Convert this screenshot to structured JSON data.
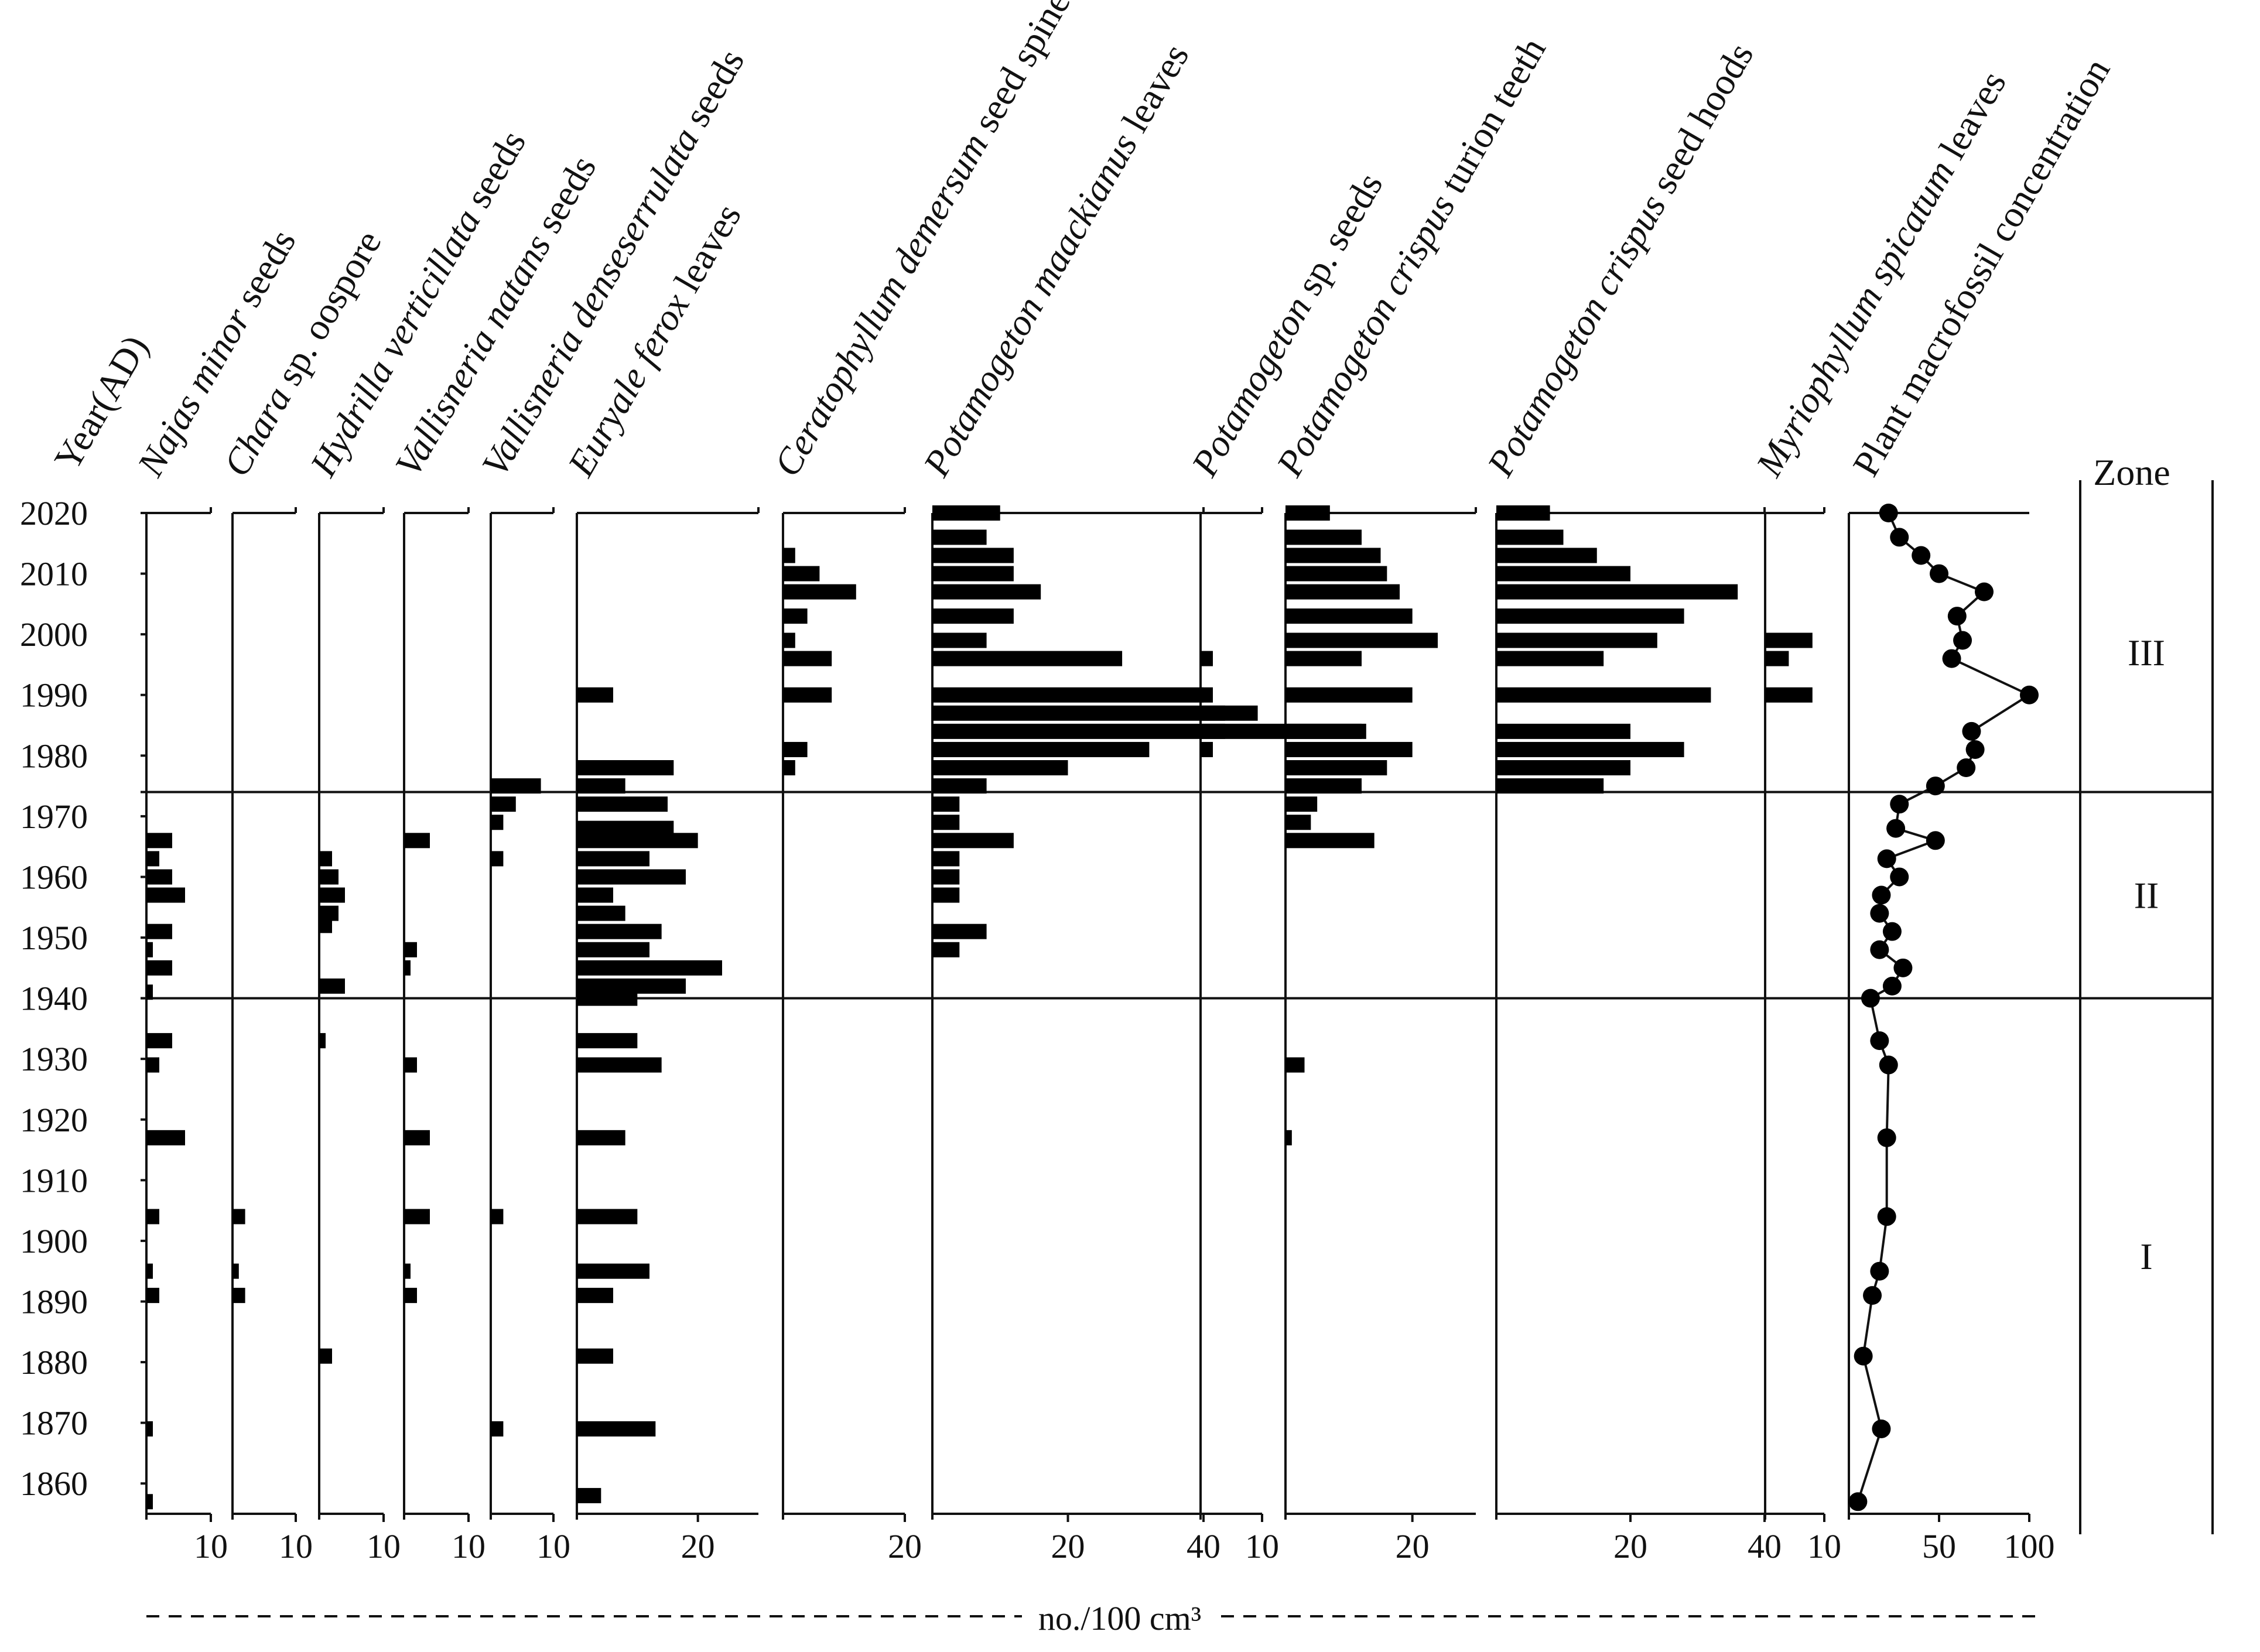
{
  "chart_data": {
    "type": "bar",
    "title": "",
    "ylabel": "Year(AD)",
    "xlabel": "no./100 cm³",
    "ylim": [
      1855,
      2020
    ],
    "yticks": [
      2020,
      2010,
      2000,
      1990,
      1980,
      1970,
      1960,
      1950,
      1940,
      1930,
      1920,
      1910,
      1900,
      1890,
      1880,
      1870,
      1860
    ],
    "zone_header": "Zone",
    "zones": [
      {
        "name": "I",
        "from": 1855,
        "to": 1940
      },
      {
        "name": "II",
        "from": 1940,
        "to": 1974
      },
      {
        "name": "III",
        "from": 1974,
        "to": 2020
      }
    ],
    "zone_boundaries": [
      1940,
      1974
    ],
    "series": [
      {
        "name": "Najas minor seeds",
        "italic": "Najas minor",
        "rest": " seeds",
        "max": 10,
        "ticks": [
          10
        ],
        "points": [
          [
            1857,
            1
          ],
          [
            1869,
            1
          ],
          [
            1891,
            2
          ],
          [
            1895,
            1
          ],
          [
            1904,
            2
          ],
          [
            1917,
            6
          ],
          [
            1929,
            2
          ],
          [
            1933,
            4
          ],
          [
            1941,
            1
          ],
          [
            1945,
            4
          ],
          [
            1948,
            1
          ],
          [
            1951,
            4
          ],
          [
            1957,
            6
          ],
          [
            1960,
            4
          ],
          [
            1963,
            2
          ],
          [
            1966,
            4
          ]
        ]
      },
      {
        "name": "Chara sp. oospore",
        "italic": "Chara",
        "rest": " sp. oospore",
        "max": 10,
        "ticks": [
          10
        ],
        "points": [
          [
            1891,
            2
          ],
          [
            1895,
            1
          ],
          [
            1904,
            2
          ]
        ]
      },
      {
        "name": "Hydrilla verticillata seeds",
        "italic": "Hydrilla verticillata",
        "rest": " seeds",
        "max": 10,
        "ticks": [
          10
        ],
        "points": [
          [
            1881,
            2
          ],
          [
            1933,
            1
          ],
          [
            1942,
            4
          ],
          [
            1952,
            2
          ],
          [
            1954,
            3
          ],
          [
            1957,
            4
          ],
          [
            1960,
            3
          ],
          [
            1963,
            2
          ]
        ]
      },
      {
        "name": "Vallisneria natans seeds",
        "italic": "Vallisneria natans",
        "rest": " seeds",
        "max": 10,
        "ticks": [
          10
        ],
        "points": [
          [
            1891,
            2
          ],
          [
            1895,
            1
          ],
          [
            1904,
            4
          ],
          [
            1917,
            4
          ],
          [
            1929,
            2
          ],
          [
            1945,
            1
          ],
          [
            1948,
            2
          ],
          [
            1966,
            4
          ]
        ]
      },
      {
        "name": "Vallisneria denseserrulata seeds",
        "italic": "Vallisneria denseserrulata",
        "rest": " seeds",
        "max": 10,
        "ticks": [
          10
        ],
        "points": [
          [
            1869,
            2
          ],
          [
            1904,
            2
          ],
          [
            1963,
            2
          ],
          [
            1969,
            2
          ],
          [
            1972,
            4
          ],
          [
            1975,
            8
          ]
        ]
      },
      {
        "name": "Euryale ferox leaves",
        "italic": "Euryale ferox",
        "rest": " leaves",
        "max": 30,
        "ticks": [
          20
        ],
        "points": [
          [
            1858,
            4
          ],
          [
            1869,
            13
          ],
          [
            1881,
            6
          ],
          [
            1891,
            6
          ],
          [
            1895,
            12
          ],
          [
            1904,
            10
          ],
          [
            1917,
            8
          ],
          [
            1929,
            14
          ],
          [
            1933,
            10
          ],
          [
            1940,
            10
          ],
          [
            1942,
            18
          ],
          [
            1945,
            24
          ],
          [
            1948,
            12
          ],
          [
            1951,
            14
          ],
          [
            1954,
            8
          ],
          [
            1957,
            6
          ],
          [
            1960,
            18
          ],
          [
            1963,
            12
          ],
          [
            1966,
            20
          ],
          [
            1968,
            16
          ],
          [
            1972,
            15
          ],
          [
            1975,
            8
          ],
          [
            1978,
            16
          ],
          [
            1990,
            6
          ]
        ]
      },
      {
        "name": "Ceratophyllum demersum seed spines",
        "italic": "Ceratophyllum demersum",
        "rest": " seed spines",
        "max": 20,
        "ticks": [
          20
        ],
        "points": [
          [
            1978,
            2
          ],
          [
            1981,
            4
          ],
          [
            1990,
            8
          ],
          [
            1996,
            8
          ],
          [
            1999,
            2
          ],
          [
            2003,
            4
          ],
          [
            2007,
            12
          ],
          [
            2010,
            6
          ],
          [
            2013,
            2
          ]
        ]
      },
      {
        "name": "Potamogeton maackianus leaves",
        "italic": "Potamogeton maackianus",
        "rest": " leaves",
        "max": 40,
        "ticks": [
          20,
          40
        ],
        "points": [
          [
            1948,
            4
          ],
          [
            1951,
            8
          ],
          [
            1957,
            4
          ],
          [
            1960,
            4
          ],
          [
            1963,
            4
          ],
          [
            1966,
            12
          ],
          [
            1969,
            4
          ],
          [
            1972,
            4
          ],
          [
            1975,
            8
          ],
          [
            1978,
            20
          ],
          [
            1981,
            32
          ],
          [
            1984,
            64
          ],
          [
            1987,
            48
          ],
          [
            1990,
            40
          ],
          [
            1996,
            28
          ],
          [
            1999,
            8
          ],
          [
            2003,
            12
          ],
          [
            2007,
            16
          ],
          [
            2010,
            12
          ],
          [
            2013,
            12
          ],
          [
            2016,
            8
          ],
          [
            2020,
            10
          ]
        ]
      },
      {
        "name": "Potamogeton sp. seeds",
        "italic": "Potamogeton",
        "rest": " sp. seeds",
        "max": 10,
        "ticks": [
          10
        ],
        "points": [
          [
            1981,
            2
          ],
          [
            1984,
            4
          ],
          [
            1987,
            4
          ],
          [
            1990,
            2
          ],
          [
            1996,
            2
          ]
        ]
      },
      {
        "name": "Potamogeton crispus turion teeth",
        "italic": "Potamogeton crispus",
        "rest": " turion teeth",
        "max": 30,
        "ticks": [
          20
        ],
        "points": [
          [
            1917,
            1
          ],
          [
            1929,
            3
          ],
          [
            1966,
            14
          ],
          [
            1969,
            4
          ],
          [
            1972,
            5
          ],
          [
            1975,
            12
          ],
          [
            1978,
            16
          ],
          [
            1981,
            20
          ],
          [
            1984,
            12
          ],
          [
            1990,
            20
          ],
          [
            1996,
            12
          ],
          [
            1999,
            24
          ],
          [
            2003,
            20
          ],
          [
            2007,
            18
          ],
          [
            2010,
            16
          ],
          [
            2013,
            15
          ],
          [
            2016,
            12
          ],
          [
            2020,
            7
          ]
        ]
      },
      {
        "name": "Potamogeton crispus seed hoods",
        "italic": "Potamogeton crispus",
        "rest": " seed hoods",
        "max": 40,
        "ticks": [
          20,
          40
        ],
        "points": [
          [
            1975,
            16
          ],
          [
            1978,
            20
          ],
          [
            1981,
            28
          ],
          [
            1984,
            20
          ],
          [
            1990,
            32
          ],
          [
            1996,
            16
          ],
          [
            1999,
            24
          ],
          [
            2003,
            28
          ],
          [
            2007,
            36
          ],
          [
            2010,
            20
          ],
          [
            2013,
            15
          ],
          [
            2016,
            10
          ],
          [
            2020,
            8
          ]
        ]
      },
      {
        "name": "Myriophyllum spicatum leaves",
        "italic": "Myriophyllum spicatum",
        "rest": " leaves",
        "max": 10,
        "ticks": [
          10
        ],
        "points": [
          [
            1990,
            8
          ],
          [
            1996,
            4
          ],
          [
            1999,
            8
          ]
        ]
      }
    ],
    "concentration": {
      "name": "Plant macrofossil concentration",
      "max": 100,
      "ticks": [
        50,
        100
      ],
      "points": [
        [
          1857,
          5
        ],
        [
          1869,
          18
        ],
        [
          1881,
          8
        ],
        [
          1891,
          13
        ],
        [
          1895,
          17
        ],
        [
          1904,
          21
        ],
        [
          1917,
          21
        ],
        [
          1929,
          22
        ],
        [
          1933,
          17
        ],
        [
          1940,
          12
        ],
        [
          1942,
          24
        ],
        [
          1945,
          30
        ],
        [
          1948,
          17
        ],
        [
          1951,
          24
        ],
        [
          1954,
          17
        ],
        [
          1957,
          18
        ],
        [
          1960,
          28
        ],
        [
          1963,
          21
        ],
        [
          1966,
          48
        ],
        [
          1968,
          26
        ],
        [
          1972,
          28
        ],
        [
          1975,
          48
        ],
        [
          1978,
          65
        ],
        [
          1981,
          70
        ],
        [
          1984,
          68
        ],
        [
          1990,
          100
        ],
        [
          1996,
          57
        ],
        [
          1999,
          63
        ],
        [
          2003,
          60
        ],
        [
          2007,
          75
        ],
        [
          2010,
          50
        ],
        [
          2013,
          40
        ],
        [
          2016,
          28
        ],
        [
          2020,
          22
        ]
      ]
    }
  }
}
